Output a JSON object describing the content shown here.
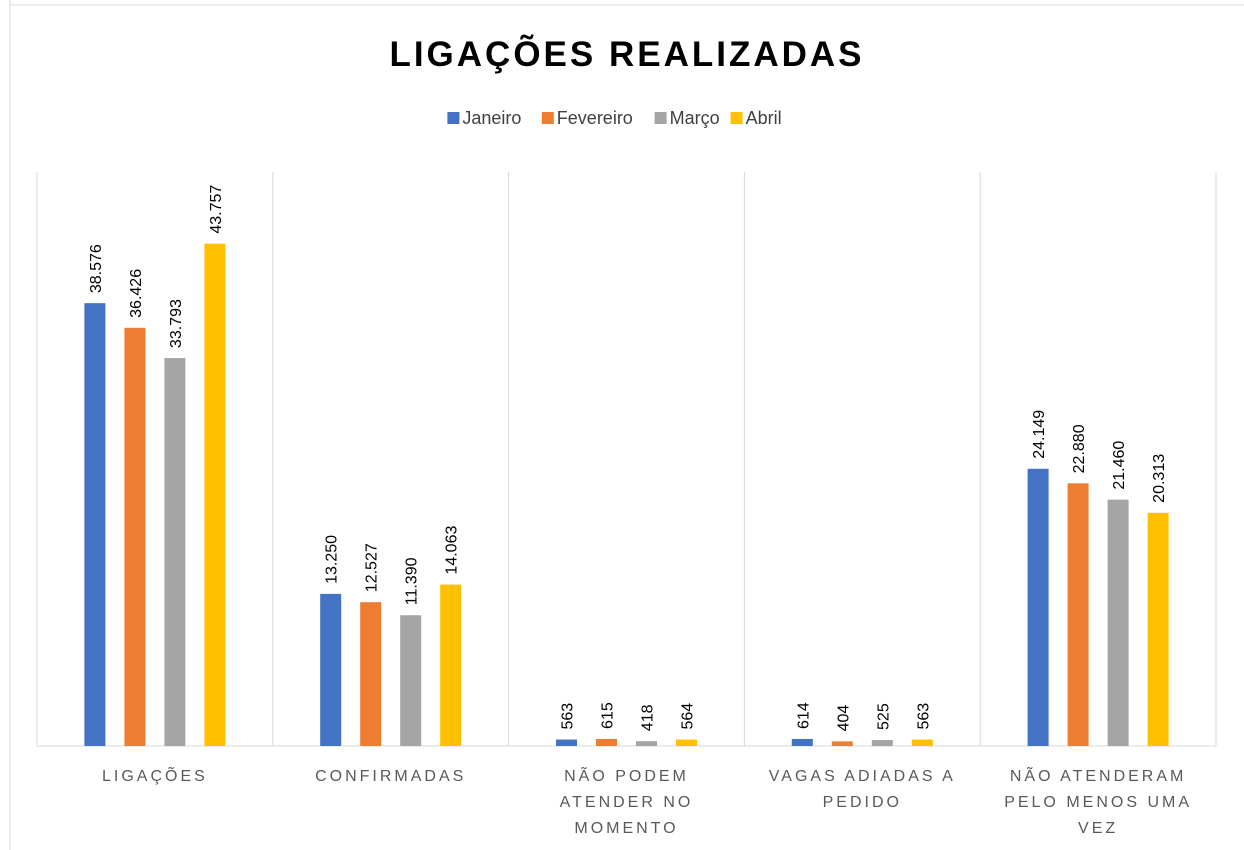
{
  "chart_data": {
    "type": "bar",
    "title": "LIGAÇÕES REALIZADAS",
    "categories": [
      "LIGAÇÕES",
      "CONFIRMADAS",
      "NÃO PODEM ATENDER NO MOMENTO",
      "VAGAS ADIADAS A PEDIDO",
      "NÃO ATENDERAM PELO MENOS UMA VEZ"
    ],
    "series": [
      {
        "name": "Janeiro",
        "color": "#4472c4",
        "values": [
          38576,
          13250,
          563,
          614,
          24149
        ],
        "value_labels": [
          "38.576",
          "13.250",
          "563",
          "614",
          "24.149"
        ]
      },
      {
        "name": "Fevereiro",
        "color": "#ed7d31",
        "values": [
          36426,
          12527,
          615,
          404,
          22880
        ],
        "value_labels": [
          "36.426",
          "12.527",
          "615",
          "404",
          "22.880"
        ]
      },
      {
        "name": "Março",
        "color": "#a5a5a5",
        "values": [
          33793,
          11390,
          418,
          525,
          21460
        ],
        "value_labels": [
          "33.793",
          "11.390",
          "418",
          "525",
          "21.460"
        ]
      },
      {
        "name": "Abril",
        "color": "#ffc000",
        "values": [
          43757,
          14063,
          564,
          563,
          20313
        ],
        "value_labels": [
          "43.757",
          "14.063",
          "564",
          "563",
          "20.313"
        ]
      }
    ],
    "ylim": [
      0,
      50000
    ],
    "legend": "top"
  }
}
